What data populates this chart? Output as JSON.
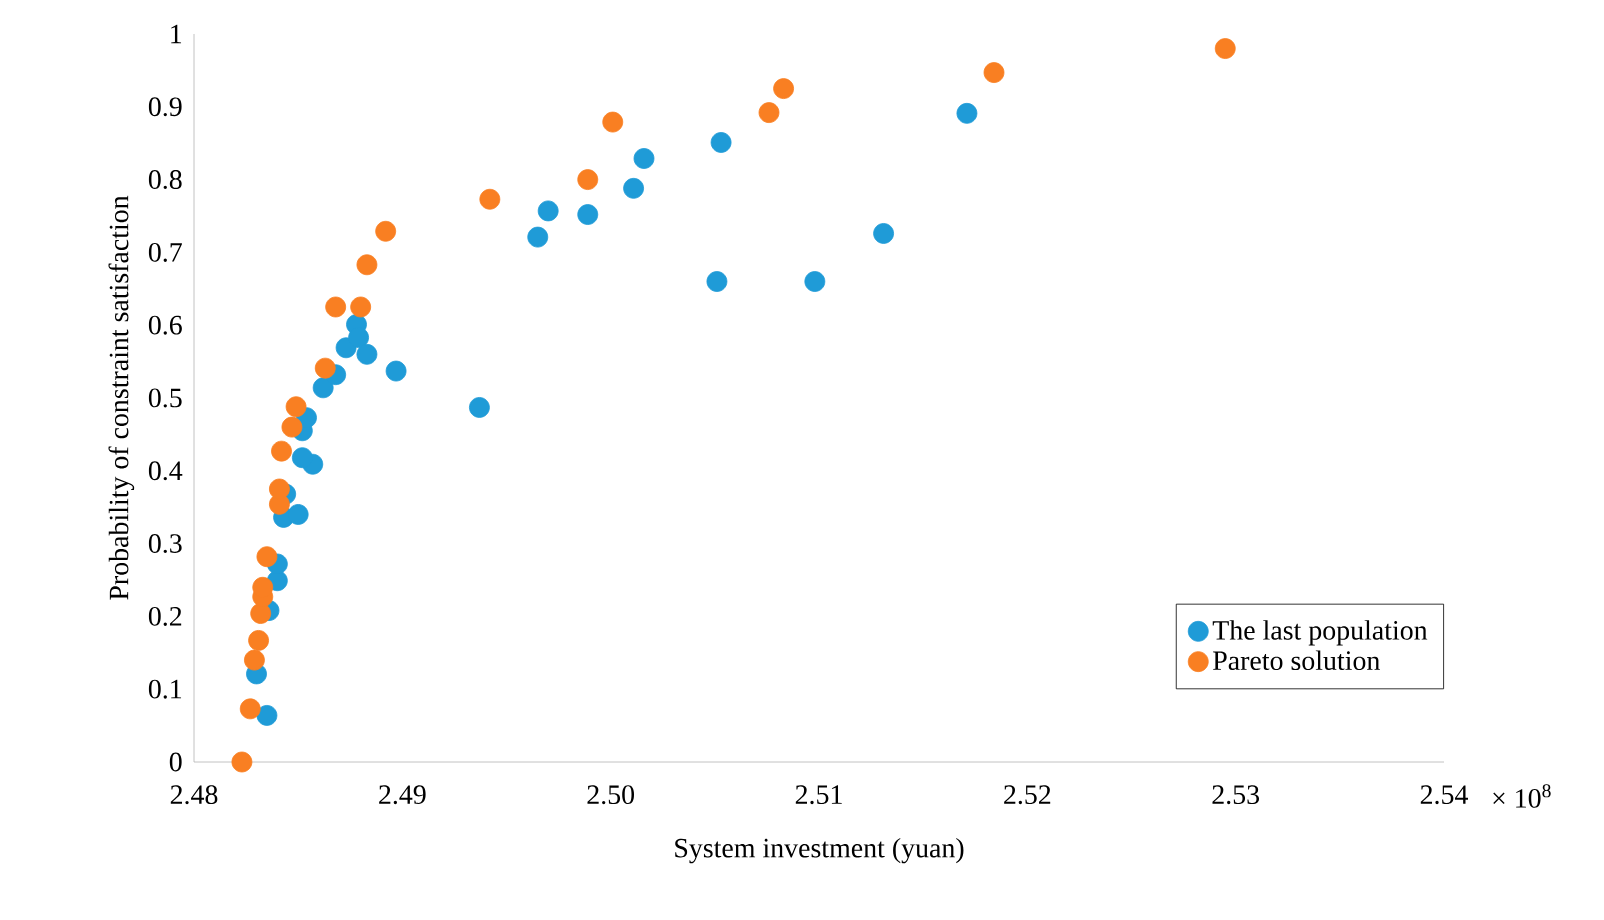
{
  "chart_data": {
    "type": "scatter",
    "xlabel": "System investment (yuan)",
    "ylabel": "Probability  of constraint satisfaction",
    "xlim": [
      2.48,
      2.54
    ],
    "xticks": [
      {
        "value": 2.48,
        "label": "2.48"
      },
      {
        "value": 2.49,
        "label": "2.49"
      },
      {
        "value": 2.5,
        "label": "2.50"
      },
      {
        "value": 2.51,
        "label": "2.51"
      },
      {
        "value": 2.52,
        "label": "2.52"
      },
      {
        "value": 2.53,
        "label": "2.53"
      },
      {
        "value": 2.54,
        "label": "2.54"
      }
    ],
    "ylim": [
      0,
      1
    ],
    "yticks": [
      0,
      0.1,
      0.2,
      0.3,
      0.4,
      0.5,
      0.6,
      0.7,
      0.8,
      0.9,
      1
    ],
    "legend": "bottom right",
    "grid": false,
    "marker": "circle",
    "annotations": [
      "× 10$^{8}$"
    ],
    "series": [
      {
        "name": "The last population",
        "color": "#1f9bd7",
        "x": [
          2.4835,
          2.483,
          2.4836,
          2.484,
          2.484,
          2.4843,
          2.485,
          2.4844,
          2.4857,
          2.4852,
          2.4852,
          2.4854,
          2.4862,
          2.4868,
          2.4873,
          2.4878,
          2.4879,
          2.4883,
          2.4897,
          2.4937,
          2.4965,
          2.497,
          2.4989,
          2.5011,
          2.5016,
          2.5053,
          2.5051,
          2.5098,
          2.5131,
          2.5171
        ],
        "values": [
          0.064,
          0.121,
          0.208,
          0.249,
          0.272,
          0.336,
          0.34,
          0.368,
          0.409,
          0.418,
          0.455,
          0.473,
          0.514,
          0.532,
          0.569,
          0.601,
          0.583,
          0.56,
          0.537,
          0.487,
          0.721,
          0.757,
          0.752,
          0.788,
          0.829,
          0.851,
          0.66,
          0.66,
          0.726,
          0.891
        ]
      },
      {
        "name": "Pareto solution",
        "color": "#f97f22",
        "x": [
          2.4823,
          2.4827,
          2.4829,
          2.4831,
          2.4832,
          2.4833,
          2.4833,
          2.4835,
          2.4841,
          2.4841,
          2.4842,
          2.4847,
          2.4849,
          2.4863,
          2.4868,
          2.488,
          2.4883,
          2.4892,
          2.4942,
          2.4989,
          2.5001,
          2.5076,
          2.5083,
          2.5184,
          2.5295
        ],
        "values": [
          0,
          0.073,
          0.14,
          0.167,
          0.204,
          0.227,
          0.24,
          0.282,
          0.354,
          0.375,
          0.427,
          0.46,
          0.488,
          0.541,
          0.625,
          0.625,
          0.683,
          0.729,
          0.773,
          0.8,
          0.879,
          0.892,
          0.925,
          0.947,
          0.98
        ]
      }
    ]
  }
}
